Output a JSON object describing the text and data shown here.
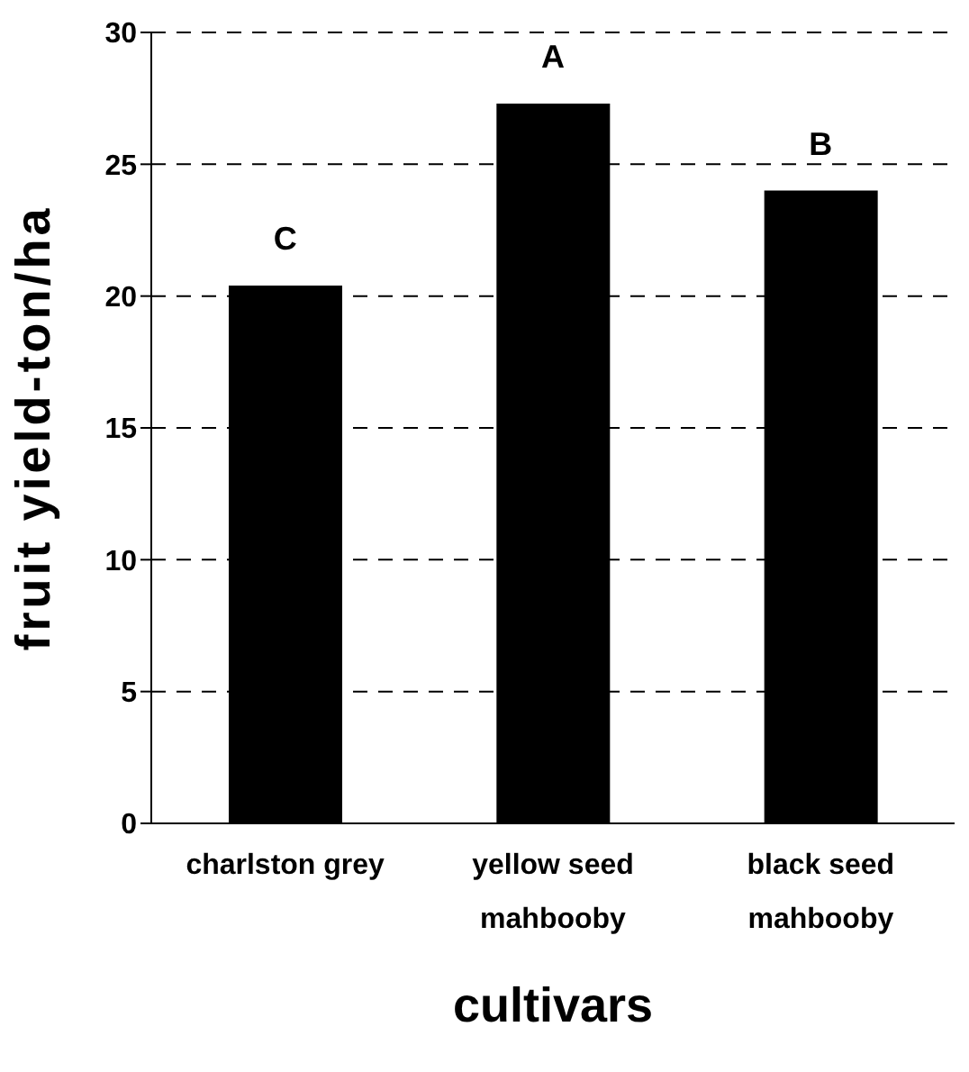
{
  "chart_data": {
    "type": "bar",
    "xlabel": "cultivars",
    "ylabel": "fruit yield-ton/ha",
    "categories": [
      "charlston grey",
      "yellow seed mahbooby",
      "black seed mahbooby"
    ],
    "values": [
      20.4,
      27.3,
      24.0
    ],
    "color": "#000000",
    "ylim": [
      0,
      30
    ],
    "yticks": [
      0,
      5,
      10,
      15,
      20,
      25,
      30
    ],
    "grid": "y",
    "legend": false,
    "annotations": [
      {
        "text": "C",
        "x": "charlston grey",
        "y": 20.4
      },
      {
        "text": "A",
        "x": "yellow seed mahbooby",
        "y": 27.3
      },
      {
        "text": "B",
        "x": "black seed mahbooby",
        "y": 24.0
      }
    ]
  }
}
